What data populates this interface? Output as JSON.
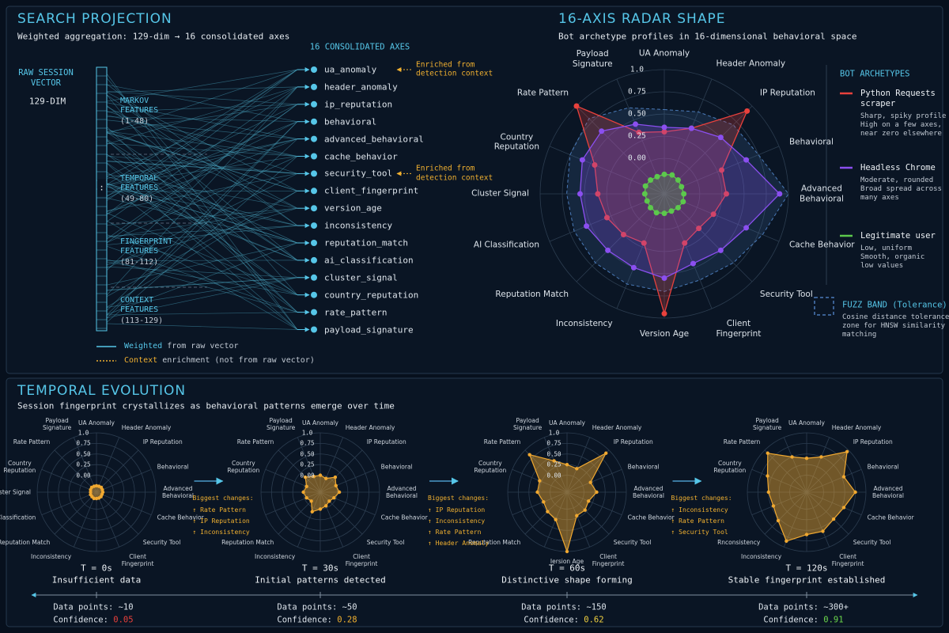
{
  "projection": {
    "title": "SEARCH PROJECTION",
    "subtitle": "Weighted aggregation: 129-dim → 16 consolidated axes",
    "raw_title": "RAW SESSION\nVECTOR",
    "raw_dim": "129-DIM",
    "gap_mark": ":",
    "groups": [
      {
        "name": "MARKOV\nFEATURES",
        "range": "(1-48)"
      },
      {
        "name": "TEMPORAL\nFEATURES",
        "range": "(49-80)"
      },
      {
        "name": "FINGERPRINT\nFEATURES",
        "range": "(81-112)"
      },
      {
        "name": "CONTEXT\nFEATURES",
        "range": "(113-129)"
      }
    ],
    "axes_title": "16 CONSOLIDATED AXES",
    "axes": [
      "ua_anomaly",
      "header_anomaly",
      "ip_reputation",
      "behavioral",
      "advanced_behavioral",
      "cache_behavior",
      "security_tool",
      "client_fingerprint",
      "version_age",
      "inconsistency",
      "reputation_match",
      "ai_classification",
      "cluster_signal",
      "country_reputation",
      "rate_pattern",
      "payload_signature"
    ],
    "enrichments": [
      "Enriched from\ndetection context",
      "Enriched from\ndetection context"
    ],
    "legend": [
      {
        "label": "Weighted",
        "text": "from raw vector"
      },
      {
        "label": "Context",
        "text": "enrichment (not from raw vector)"
      }
    ]
  },
  "radar": {
    "title": "16-AXIS RADAR SHAPE",
    "subtitle": "Bot archetype profiles in 16-dimensional behavioral space",
    "axes": [
      "UA Anomaly",
      "Header Anomaly",
      "IP Reputation",
      "Behavioral",
      "Advanced\nBehavioral",
      "Cache Behavior",
      "Security Tool",
      "Client\nFingerprint",
      "Version Age",
      "Inconsistency",
      "Reputation Match",
      "AI Classification",
      "Cluster Signal",
      "Country\nReputation",
      "Rate Pattern",
      "Payload\nSignature"
    ],
    "rlim": [
      -0.4,
      1.0
    ],
    "rticks": [
      {
        "value": 0,
        "label": "0.00"
      },
      0.25,
      {
        "value": 0.5,
        "label": "0.50"
      },
      0.75,
      {
        "value": 1,
        "label": "1.0"
      }
    ],
    "legend_title": "BOT ARCHETYPES",
    "series": [
      {
        "name": "Python Requests\nscraper",
        "description": "Sharp, spiky profile\nHigh on a few axes,\nnear zero elsewhere",
        "color": "#e8413c",
        "values": [
          0.3,
          0.4,
          0.92,
          0.3,
          0.3,
          0.2,
          0.15,
          0.2,
          0.95,
          0.2,
          0.25,
          0.3,
          0.35,
          0.45,
          1.0,
          0.35
        ]
      },
      {
        "name": "Headless Chrome",
        "description": "Moderate, rounded\nBroad spread across\nmany axes",
        "color": "#8b4ff0",
        "values": [
          0.35,
          0.4,
          0.5,
          0.6,
          0.9,
          0.6,
          0.5,
          0.45,
          0.55,
          0.5,
          0.5,
          0.55,
          0.55,
          0.6,
          0.6,
          0.45
        ]
      },
      {
        "name": "Legitimate user",
        "description": "Low, uniform\nSmooth, organic\nlow values",
        "color": "#5cc84c",
        "values": [
          -0.18,
          -0.17,
          -0.18,
          -0.19,
          -0.18,
          -0.17,
          -0.18,
          -0.19,
          -0.18,
          -0.17,
          -0.18,
          -0.19,
          -0.18,
          -0.17,
          -0.18,
          -0.19
        ]
      }
    ],
    "fuzz_band": {
      "name": "FUZZ BAND (Tolerance)",
      "description": "Cosine distance tolerance\nzone for HNSW similarity\nmatching",
      "color": "#4a7ab8",
      "values": [
        0.55,
        0.6,
        0.7,
        0.75,
        1.0,
        0.8,
        0.7,
        0.65,
        0.7,
        0.7,
        0.7,
        0.7,
        0.7,
        0.75,
        0.8,
        0.65
      ]
    }
  },
  "temporal": {
    "title": "TEMPORAL EVOLUTION",
    "subtitle": "Session fingerprint crystallizes as behavioral patterns emerge over time",
    "color": "#f0a830",
    "stages": [
      {
        "time": "T = 0s",
        "caption": "Insufficient data",
        "axis_labels": [
          "UA Anomaly",
          "Header Anomaly",
          "IP Reputation",
          "Behavioral",
          "Advanced\nBehavioral",
          "Cache Behavior",
          "Security Tool",
          "Client\nFingerprint",
          null,
          "Inconsistency",
          "Reputation Match",
          "AI Classification",
          "Cluster Signal",
          "Country\nReputation",
          "Rate Pattern",
          "Payload\nSignature"
        ],
        "values": [
          -0.25,
          -0.25,
          -0.24,
          -0.25,
          -0.25,
          -0.26,
          -0.25,
          -0.25,
          -0.25,
          -0.24,
          -0.25,
          -0.25,
          -0.26,
          -0.25,
          -0.24,
          -0.25
        ],
        "data_points_label": "Data points:",
        "data_points": "~10",
        "confidence_label": "Confidence:",
        "confidence": 0.05,
        "confidence_color": "#e8413c"
      },
      {
        "time": "T = 30s",
        "caption": "Initial patterns detected",
        "axis_labels": [
          "UA Anomaly",
          "Header Anomaly",
          "IP Reputation",
          "Behavioral",
          "Advanced\nBehavioral",
          "Cache Behavior",
          "Security Tool",
          "Client\nFingerprint",
          null,
          "Inconsistency",
          "Reputation Match",
          null,
          null,
          "Country\nReputation",
          "Rate Pattern",
          "Payload\nSignature"
        ],
        "values": [
          0.0,
          -0.05,
          0.1,
          0.0,
          0.05,
          -0.05,
          -0.1,
          -0.05,
          0.0,
          0.1,
          -0.1,
          -0.05,
          0.0,
          -0.05,
          0.1,
          0.0
        ],
        "data_points_label": "Data points:",
        "data_points": "~50",
        "confidence_label": "Confidence:",
        "confidence": 0.28,
        "confidence_color": "#f0b030"
      },
      {
        "time": "T = 60s",
        "caption": "Distinctive shape forming",
        "axis_labels": [
          "UA Anomaly",
          "Header Anomaly",
          "IP Reputation",
          "Behavioral",
          "Advanced\nBehavioral",
          "Cache Behavior",
          "Security Tool",
          "Client\nFingerprint",
          "Iersion Age",
          null,
          "Reputation Match",
          null,
          null,
          "Country\nReputation",
          "Rate Pattern",
          "Payload\nSignature"
        ],
        "values": [
          0.25,
          0.2,
          0.9,
          0.2,
          0.3,
          0.15,
          0.2,
          0.2,
          1.0,
          0.3,
          0.25,
          0.2,
          0.3,
          0.3,
          0.85,
          0.4
        ],
        "data_points_label": "Data points:",
        "data_points": "~150",
        "confidence_label": "Confidence:",
        "confidence": 0.62,
        "confidence_color": "#f0d040"
      },
      {
        "time": "T = 120s",
        "caption": "Stable fingerprint established",
        "axis_labels": [
          "UA Anomaly",
          "Header Anomaly",
          "IP Reputation",
          "Behavioral",
          "Advanced\nBehavioral",
          "Cache Behavior",
          "Security Tool",
          "Client\nFingerprint",
          null,
          "Inconsistency",
          "Rnconsistency",
          null,
          null,
          "Country\nReputation",
          "Rate Pattern",
          "Payload\nSignature"
        ],
        "values": [
          0.4,
          0.5,
          0.95,
          0.55,
          0.75,
          0.55,
          0.5,
          0.6,
          0.6,
          0.85,
          0.55,
          0.45,
          0.5,
          0.6,
          0.9,
          0.5
        ],
        "data_points_label": "Data points:",
        "data_points": "~300+",
        "confidence_label": "Confidence:",
        "confidence": 0.91,
        "confidence_color": "#6cd84c"
      }
    ],
    "transitions": [
      {
        "title": "Biggest changes:",
        "items": [
          "↑ Rate Pattern",
          "↑ IP Reputation",
          "↑ Inconsistency"
        ]
      },
      {
        "title": "Biggest changes:",
        "items": [
          "↑ IP Reputation",
          "↑ Inconsistency",
          "↑ Rate Pattern",
          "↑ Header Anomaly"
        ]
      },
      {
        "title": "Biggest changes:",
        "items": [
          "↑ Inconsistency",
          "↑ Rate Pattern",
          "↑ Security Tool"
        ]
      }
    ]
  }
}
